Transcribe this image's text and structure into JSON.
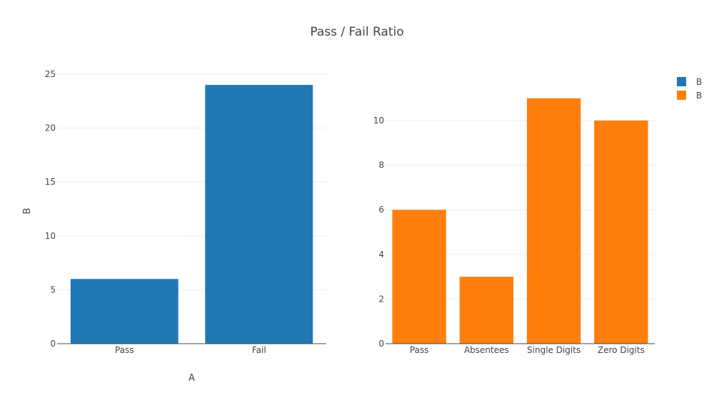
{
  "chart_title": "Pass / Fail Ratio",
  "legend": [
    {
      "label": "B",
      "color": "#1f77b4"
    },
    {
      "label": "B",
      "color": "#ff7f0e"
    }
  ],
  "chart_data": [
    {
      "type": "bar",
      "categories": [
        "Pass",
        "Fail"
      ],
      "values": [
        6,
        24
      ],
      "xlabel": "A",
      "ylabel": "B",
      "ylim": [
        0,
        25
      ],
      "yticks": [
        0,
        5,
        10,
        15,
        20,
        25
      ],
      "color": "#1f77b4",
      "grid": true
    },
    {
      "type": "bar",
      "categories": [
        "Pass",
        "Absentees",
        "Single Digits",
        "Zero Digits"
      ],
      "values": [
        6,
        3,
        11,
        10
      ],
      "xlabel": "",
      "ylabel": "",
      "ylim": [
        0,
        11.6
      ],
      "yticks": [
        0,
        2,
        4,
        6,
        8,
        10
      ],
      "color": "#ff7f0e",
      "grid": true
    }
  ]
}
